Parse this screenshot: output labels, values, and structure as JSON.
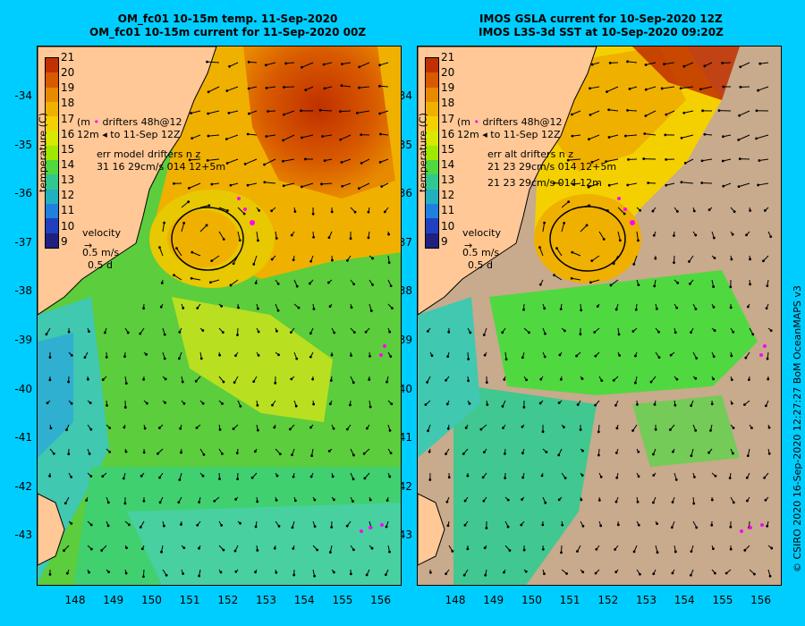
{
  "left": {
    "title_line1": "OM_fc01 10-15m temp. 11-Sep-2020",
    "title_line2": "OM_fc01 10-15m current for 11-Sep-2020 00Z",
    "drifter_legend_line1": "drifters 48h@12",
    "drifter_legend_line2": "to 11-Sep 12Z",
    "drifter_stub_1": "(m",
    "drifter_stub_2": "12m",
    "err_line1": "err model drifters n  z",
    "err_line2": "31 16 29cm/s 014 12+5m",
    "err_line3": ""
  },
  "right": {
    "title_line1": "IMOS GSLA current for 10-Sep-2020 12Z",
    "title_line2": "IMOS L3S-3d SST at 10-Sep-2020 09:20Z",
    "drifter_legend_line1": "drifters 48h@12",
    "drifter_legend_line2": "to 11-Sep 12Z",
    "drifter_stub_1": "(m",
    "drifter_stub_2": "12m",
    "err_line1": "err alt drifters n  z",
    "err_line2": "21 23 29cm/s 014 12+5m",
    "err_line3": "21 23 29cm/s 014 12m"
  },
  "colorbar": {
    "title": "temperature (C)",
    "ticks": [
      "21",
      "20",
      "19",
      "18",
      "17",
      "16",
      "15",
      "14",
      "13",
      "12",
      "11",
      "10",
      "9"
    ],
    "colors": [
      "#c03000",
      "#d85a00",
      "#e88a00",
      "#f0b000",
      "#f4d000",
      "#d8e800",
      "#a0e800",
      "#50d840",
      "#30c890",
      "#20b0c0",
      "#2080e0",
      "#2040c0",
      "#202080"
    ]
  },
  "velocity_legend": {
    "label": "velocity",
    "speed": "0.5 m/s",
    "duration": "0.5 d"
  },
  "y_ticks": [
    "-34",
    "-35",
    "-36",
    "-37",
    "-38",
    "-39",
    "-40",
    "-41",
    "-42",
    "-43"
  ],
  "x_ticks": [
    "148",
    "149",
    "150",
    "151",
    "152",
    "153",
    "154",
    "155",
    "156"
  ],
  "credit": "© CSIRO 2020   16-Sep-2020 12:27:27 BoM OceanMAPS v3",
  "colors": {
    "land": "#ffc896",
    "background": "#00cdff",
    "no_data": "#c8aa8c",
    "drifter": "#ff00ff"
  }
}
